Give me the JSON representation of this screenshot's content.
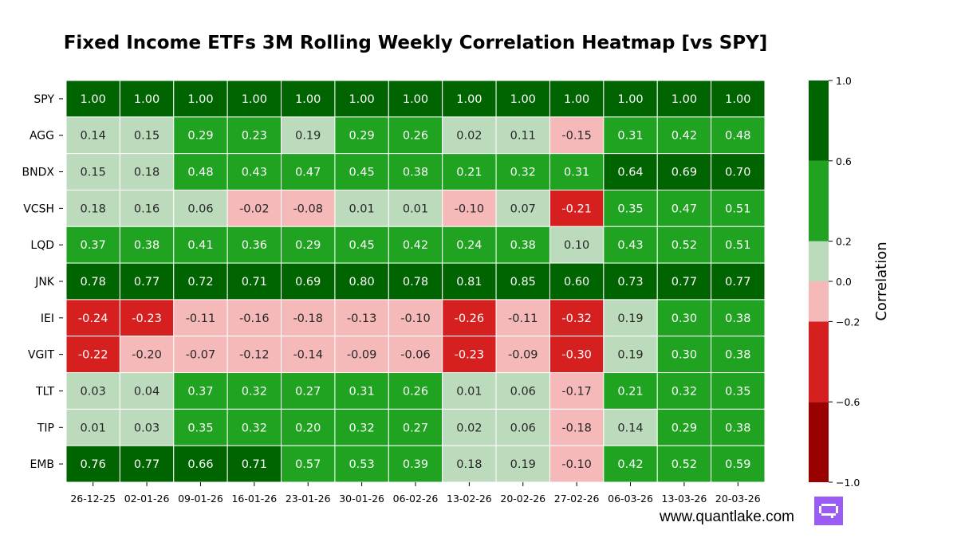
{
  "chart_data": {
    "type": "heatmap",
    "title": "Fixed Income ETFs 3M Rolling Weekly Correlation Heatmap [vs SPY]",
    "rows": [
      "SPY",
      "AGG",
      "BNDX",
      "VCSH",
      "LQD",
      "JNK",
      "IEI",
      "VGIT",
      "TLT",
      "TIP",
      "EMB"
    ],
    "columns": [
      "26-12-25",
      "02-01-26",
      "09-01-26",
      "16-01-26",
      "23-01-26",
      "30-01-26",
      "06-02-26",
      "13-02-26",
      "20-02-26",
      "27-02-26",
      "06-03-26",
      "13-03-26",
      "20-03-26"
    ],
    "values": [
      [
        1.0,
        1.0,
        1.0,
        1.0,
        1.0,
        1.0,
        1.0,
        1.0,
        1.0,
        1.0,
        1.0,
        1.0,
        1.0
      ],
      [
        0.14,
        0.15,
        0.29,
        0.23,
        0.19,
        0.29,
        0.26,
        0.02,
        0.11,
        -0.15,
        0.31,
        0.42,
        0.48
      ],
      [
        0.15,
        0.18,
        0.48,
        0.43,
        0.47,
        0.45,
        0.38,
        0.21,
        0.32,
        0.31,
        0.64,
        0.69,
        0.7
      ],
      [
        0.18,
        0.16,
        0.06,
        -0.02,
        -0.08,
        0.01,
        0.01,
        -0.1,
        0.07,
        -0.21,
        0.35,
        0.47,
        0.51
      ],
      [
        0.37,
        0.38,
        0.41,
        0.36,
        0.29,
        0.45,
        0.42,
        0.24,
        0.38,
        0.1,
        0.43,
        0.52,
        0.51
      ],
      [
        0.78,
        0.77,
        0.72,
        0.71,
        0.69,
        0.8,
        0.78,
        0.81,
        0.85,
        0.6,
        0.73,
        0.77,
        0.77
      ],
      [
        -0.24,
        -0.23,
        -0.11,
        -0.16,
        -0.18,
        -0.13,
        -0.1,
        -0.26,
        -0.11,
        -0.32,
        0.19,
        0.3,
        0.38
      ],
      [
        -0.22,
        -0.2,
        -0.07,
        -0.12,
        -0.14,
        -0.09,
        -0.06,
        -0.23,
        -0.09,
        -0.3,
        0.19,
        0.3,
        0.38
      ],
      [
        0.03,
        0.04,
        0.37,
        0.32,
        0.27,
        0.31,
        0.26,
        0.01,
        0.06,
        -0.17,
        0.21,
        0.32,
        0.35
      ],
      [
        0.01,
        0.03,
        0.35,
        0.32,
        0.2,
        0.32,
        0.27,
        0.02,
        0.06,
        -0.18,
        0.14,
        0.29,
        0.38
      ],
      [
        0.76,
        0.77,
        0.66,
        0.71,
        0.57,
        0.53,
        0.39,
        0.18,
        0.19,
        -0.1,
        0.42,
        0.52,
        0.59
      ]
    ],
    "colorbar": {
      "label": "Correlation",
      "bounds": [
        -1.0,
        -0.6,
        -0.2,
        0.0,
        0.2,
        0.6,
        1.0
      ],
      "ticks": [
        "1.0",
        "0.6",
        "0.2",
        "0.0",
        "−0.2",
        "−0.6",
        "−1.0"
      ],
      "colors": [
        "#990000",
        "#d62020",
        "#f6b9b9",
        "#bcdbbc",
        "#20a320",
        "#006400"
      ]
    }
  },
  "watermark": "www.quantlake.com"
}
